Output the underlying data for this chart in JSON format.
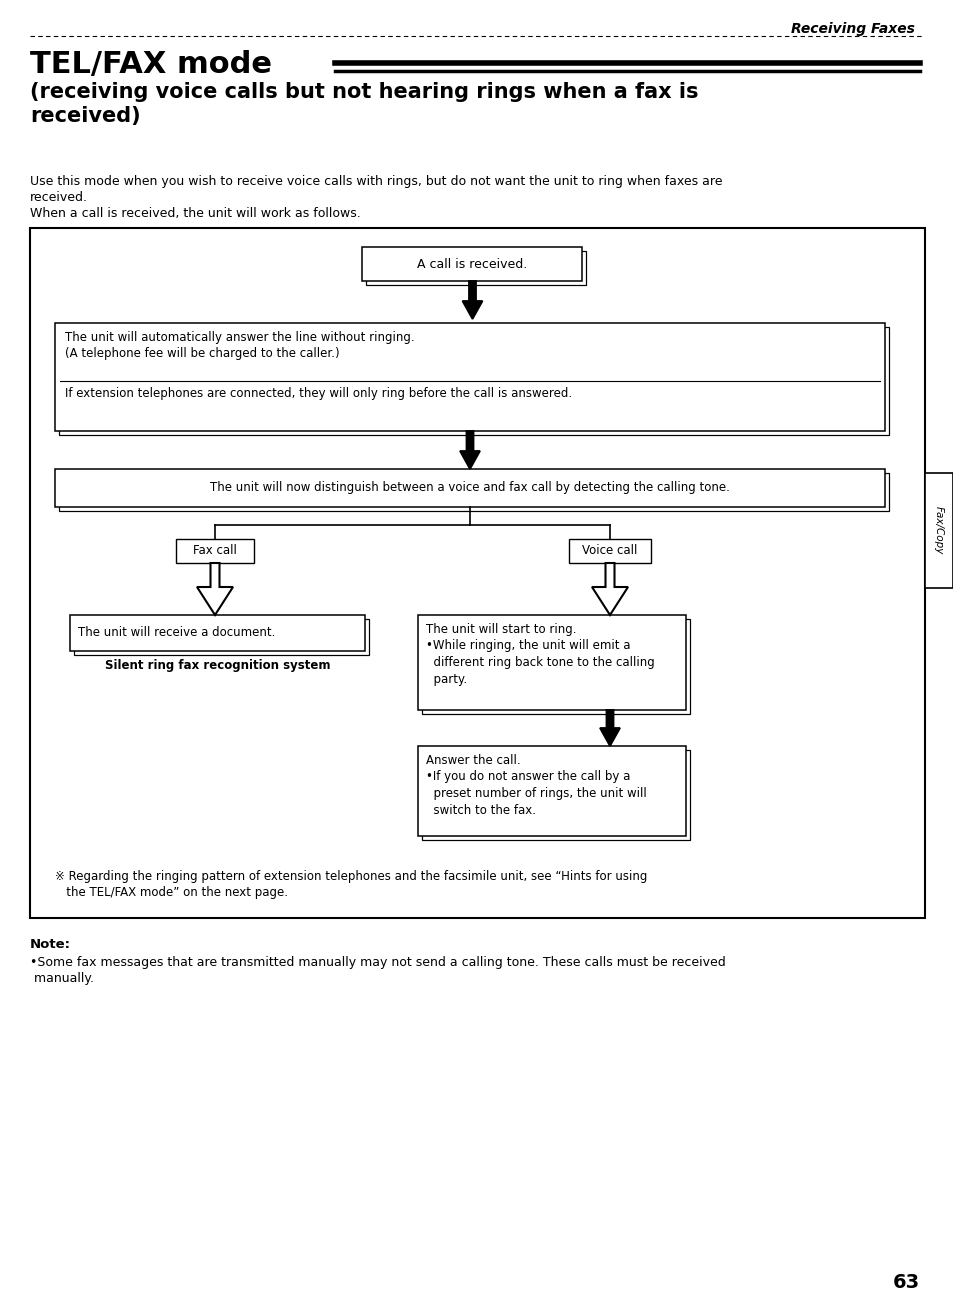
{
  "page_header": "Receiving Faxes",
  "title_main": "TEL/FAX mode",
  "title_sub": "(receiving voice calls but not hearing rings when a fax is\nreceived)",
  "intro_line1": "Use this mode when you wish to receive voice calls with rings, but do not want the unit to ring when faxes are",
  "intro_line2": "received.",
  "intro_line3": "When a call is received, the unit will work as follows.",
  "box1_text": "A call is received.",
  "box2_text1": "The unit will automatically answer the line without ringing.",
  "box2_text2": "(A telephone fee will be charged to the caller.)",
  "box2_text3": "If extension telephones are connected, they will only ring before the call is answered.",
  "box3_text": "The unit will now distinguish between a voice and fax call by detecting the calling tone.",
  "label_fax": "Fax call",
  "label_voice": "Voice call",
  "box4_text": "The unit will receive a document.",
  "box4_caption": "Silent ring fax recognition system",
  "box5_text1": "The unit will start to ring.",
  "box5_text2": "•While ringing, the unit will emit a\n  different ring back tone to the calling\n  party.",
  "box6_text1": "Answer the call.",
  "box6_text2": "•If you do not answer the call by a\n  preset number of rings, the unit will\n  switch to the fax.",
  "footnote1": "※ Regarding the ringing pattern of extension telephones and the facsimile unit, see “Hints for using",
  "footnote2": "   the TEL/FAX mode” on the next page.",
  "note_label": "Note:",
  "note_text1": "•Some fax messages that are transmitted manually may not send a calling tone. These calls must be received",
  "note_text2": " manually.",
  "page_number": "63",
  "side_tab": "Fax/Copy",
  "bg_color": "#ffffff",
  "text_color": "#000000"
}
